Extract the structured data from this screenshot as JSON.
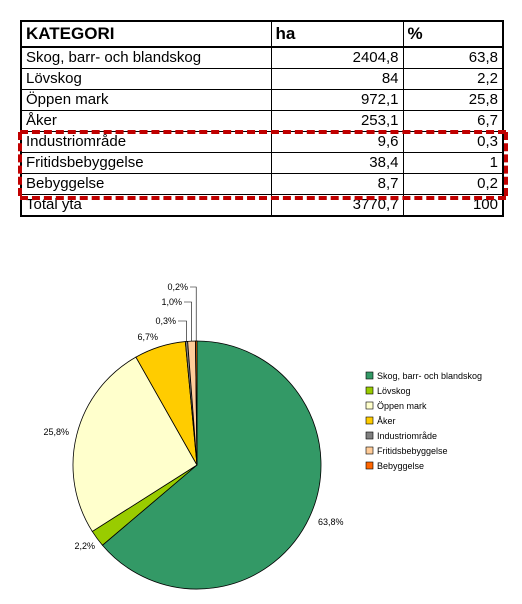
{
  "table": {
    "headers": [
      "KATEGORI",
      "ha",
      "%"
    ],
    "rows": [
      [
        "Skog, barr- och blandskog",
        "2404,8",
        "63,8"
      ],
      [
        "Lövskog",
        "84",
        "2,2"
      ],
      [
        "Öppen mark",
        "972,1",
        "25,8"
      ],
      [
        "Åker",
        "253,1",
        "6,7"
      ],
      [
        "Industriområde",
        "9,6",
        "0,3"
      ],
      [
        "Fritidsbebyggelse",
        "38,4",
        "1"
      ],
      [
        "Bebyggelse",
        "8,7",
        "0,2"
      ],
      [
        "Total yta",
        "3770,7",
        "100"
      ]
    ]
  },
  "highlight_color": "#c00000",
  "chart_data": {
    "type": "pie",
    "title": "",
    "legend_position": "right",
    "slices": [
      {
        "name": "Skog, barr- och blandskog",
        "value": 63.8,
        "label": "63,8%",
        "color": "#339966"
      },
      {
        "name": "Lövskog",
        "value": 2.2,
        "label": "2,2%",
        "color": "#99cc00"
      },
      {
        "name": "Öppen mark",
        "value": 25.8,
        "label": "25,8%",
        "color": "#ffffcc"
      },
      {
        "name": "Åker",
        "value": 6.7,
        "label": "6,7%",
        "color": "#ffcc00"
      },
      {
        "name": "Industriområde",
        "value": 0.3,
        "label": "0,3%",
        "color": "#808080"
      },
      {
        "name": "Fritidsbebyggelse",
        "value": 1.0,
        "label": "1,0%",
        "color": "#ffcc99"
      },
      {
        "name": "Bebyggelse",
        "value": 0.2,
        "label": "0,2%",
        "color": "#ff6600"
      }
    ]
  }
}
